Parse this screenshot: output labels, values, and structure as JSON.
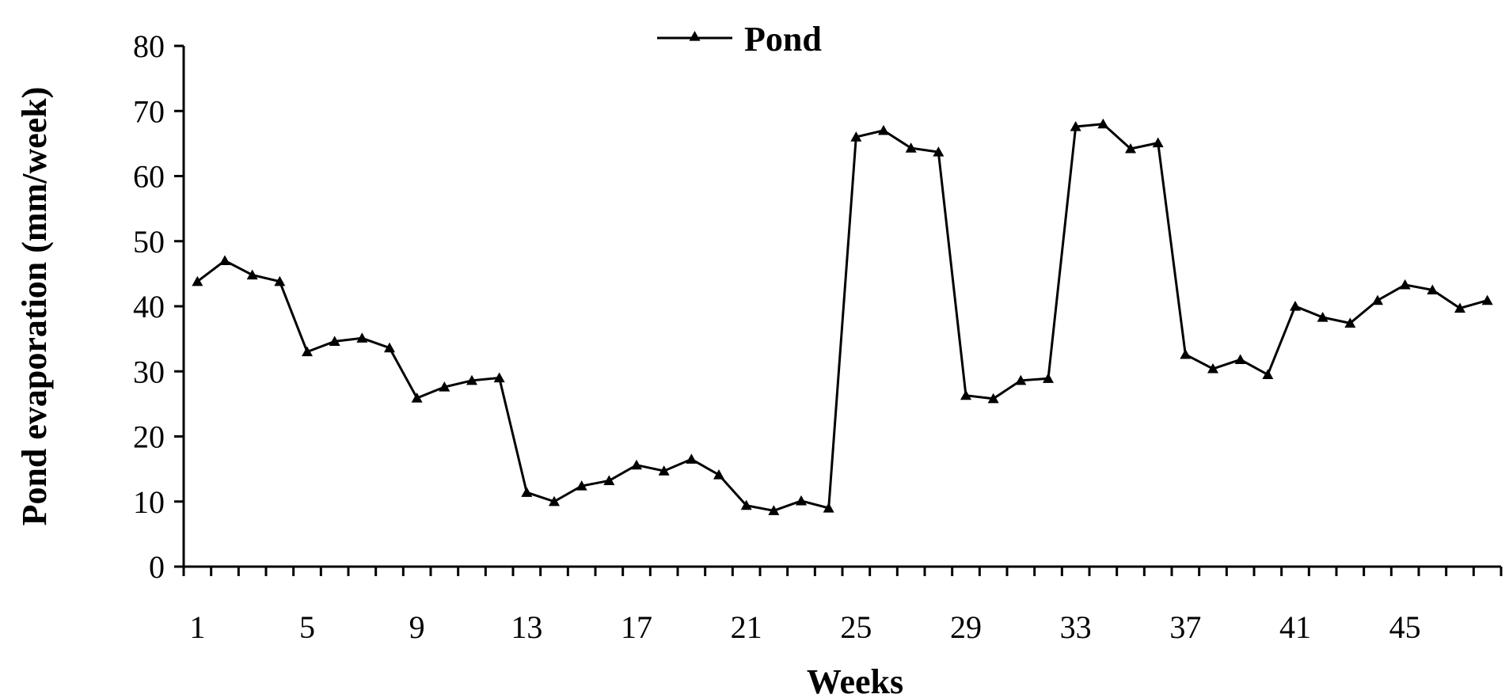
{
  "chart_data": {
    "type": "line",
    "x": [
      1,
      2,
      3,
      4,
      5,
      6,
      7,
      8,
      9,
      10,
      11,
      12,
      13,
      14,
      15,
      16,
      17,
      18,
      19,
      20,
      21,
      22,
      23,
      24,
      25,
      26,
      27,
      28,
      29,
      30,
      31,
      32,
      33,
      34,
      35,
      36,
      37,
      38,
      39,
      40,
      41,
      42,
      43,
      44,
      45,
      46,
      47,
      48
    ],
    "x_tick_labels": [
      "1",
      "5",
      "9",
      "13",
      "17",
      "21",
      "25",
      "29",
      "33",
      "37",
      "41",
      "45"
    ],
    "x_tick_values": [
      1,
      5,
      9,
      13,
      17,
      21,
      25,
      29,
      33,
      37,
      41,
      45
    ],
    "y_tick_labels": [
      "0",
      "10",
      "20",
      "30",
      "40",
      "50",
      "60",
      "70",
      "80"
    ],
    "y_tick_values": [
      0,
      10,
      20,
      30,
      40,
      50,
      60,
      70,
      80
    ],
    "ylim": [
      0,
      80
    ],
    "xlabel": "Weeks",
    "ylabel": "Pond evaporation (mm/week)",
    "grid": false,
    "legend_position": "top-center",
    "series": [
      {
        "name": "Pond",
        "color": "#000000",
        "marker": "triangle",
        "values": [
          43.8,
          47.0,
          44.8,
          43.8,
          33.0,
          34.6,
          35.1,
          33.6,
          25.9,
          27.6,
          28.6,
          29.0,
          11.4,
          10.0,
          12.4,
          13.2,
          15.6,
          14.7,
          16.5,
          14.1,
          9.4,
          8.6,
          10.1,
          9.0,
          66.0,
          67.0,
          64.3,
          63.7,
          26.3,
          25.8,
          28.6,
          28.9,
          67.6,
          68.0,
          64.2,
          65.1,
          32.6,
          30.4,
          31.8,
          29.5,
          40.0,
          38.3,
          37.4,
          40.9,
          43.3,
          42.5,
          39.7,
          40.9
        ]
      }
    ]
  }
}
